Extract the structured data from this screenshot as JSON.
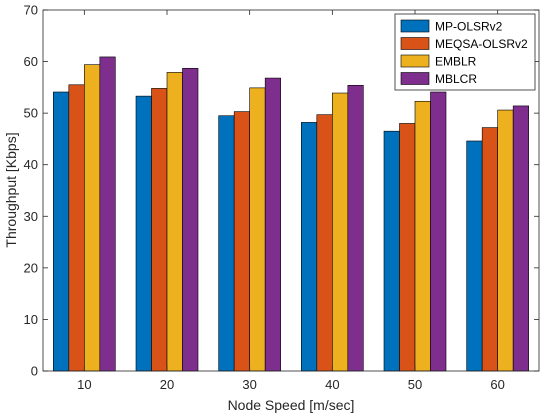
{
  "chart_data": {
    "type": "bar",
    "title": "",
    "xlabel": "Node Speed [m/sec]",
    "ylabel": "Throughput [Kbps]",
    "categories": [
      "10",
      "20",
      "30",
      "40",
      "50",
      "60"
    ],
    "ylim": [
      0,
      70
    ],
    "yticks": [
      "0",
      "10",
      "20",
      "30",
      "40",
      "50",
      "60",
      "70"
    ],
    "grid": false,
    "legend_position": "top-right",
    "series": [
      {
        "name": "MP-OLSRv2",
        "color": "#0072BD",
        "values": [
          54.1,
          53.3,
          49.5,
          48.2,
          46.5,
          44.6
        ]
      },
      {
        "name": "MEQSA-OLSRv2",
        "color": "#D95319",
        "values": [
          55.5,
          54.8,
          50.3,
          49.7,
          48.0,
          47.2
        ]
      },
      {
        "name": "EMBLR",
        "color": "#EDB120",
        "values": [
          59.4,
          57.9,
          54.9,
          53.9,
          52.3,
          50.6
        ]
      },
      {
        "name": "MBLCR",
        "color": "#7E2F8E",
        "values": [
          60.9,
          58.7,
          56.8,
          55.4,
          54.1,
          51.4
        ]
      }
    ]
  }
}
